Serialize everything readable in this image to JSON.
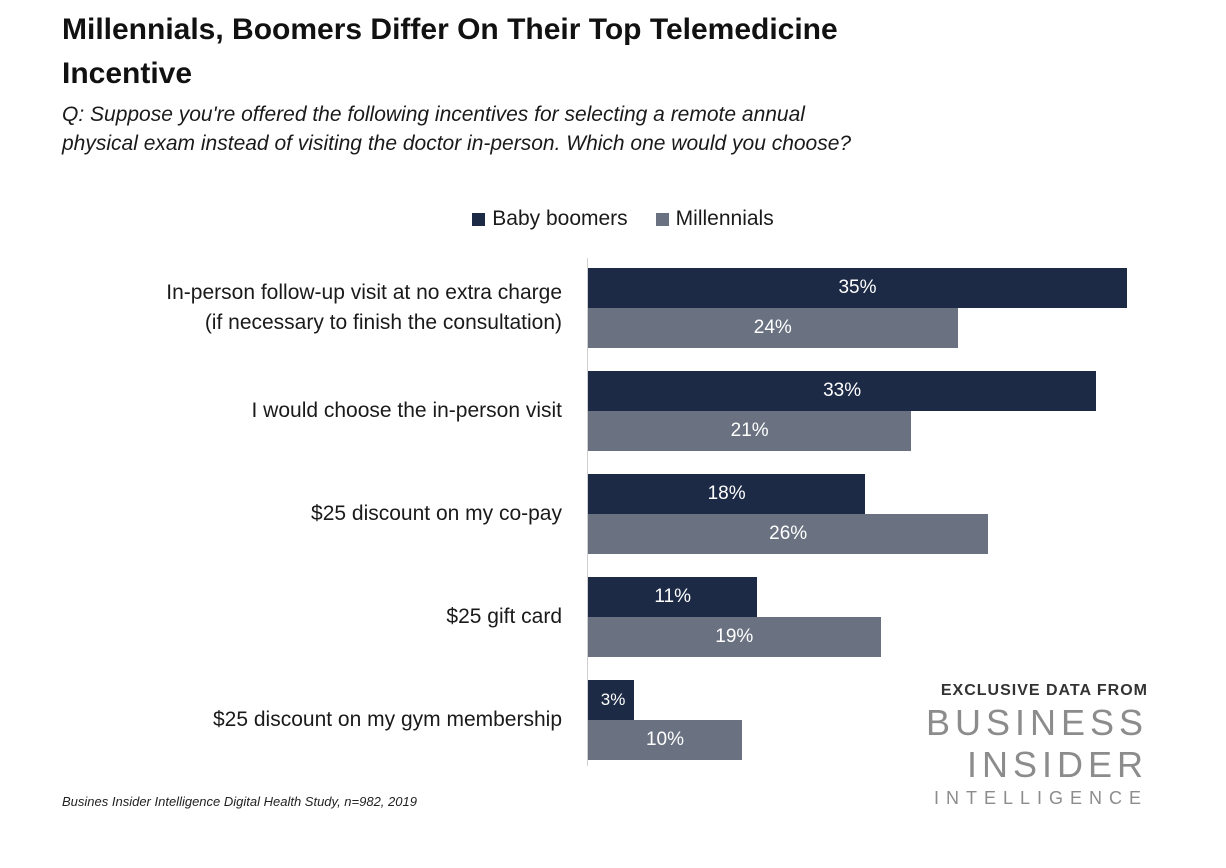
{
  "title": "Millennials, Boomers Differ On Their Top Telemedicine Incentive",
  "subtitle": "Q: Suppose you're offered the following incentives for selecting a remote annual physical exam instead of visiting the doctor in-person. Which one would you choose?",
  "source": "Busines Insider Intelligence Digital Health Study, n=982, 2019",
  "logo": {
    "kicker": "EXCLUSIVE DATA FROM",
    "line1": "BUSINESS",
    "line2": "INSIDER",
    "line3": "INTELLIGENCE"
  },
  "colors": {
    "baby_boomers": "#1c2a45",
    "millennials": "#6a7282"
  },
  "chart_data": {
    "type": "bar",
    "orientation": "horizontal",
    "categories": [
      "In-person follow-up visit at no extra charge (if necessary to finish the consultation)",
      "I would choose the in-person visit",
      "$25 discount on my co-pay",
      "$25 gift card",
      "$25 discount on my gym membership"
    ],
    "category_lines": [
      [
        "In-person follow-up visit at no extra charge",
        "(if necessary to finish the consultation)"
      ],
      [
        "I would choose the in-person visit"
      ],
      [
        "$25 discount on my co-pay"
      ],
      [
        "$25 gift card"
      ],
      [
        "$25 discount on my gym membership"
      ]
    ],
    "series": [
      {
        "name": "Baby boomers",
        "values": [
          35,
          33,
          18,
          11,
          3
        ],
        "labels": [
          "35%",
          "33%",
          "18%",
          "11%",
          "3%"
        ]
      },
      {
        "name": "Millennials",
        "values": [
          24,
          21,
          26,
          19,
          10
        ],
        "labels": [
          "24%",
          "21%",
          "26%",
          "19%",
          "10%"
        ]
      }
    ],
    "xlim": [
      0,
      35
    ],
    "legend_position": "top",
    "grid": false
  }
}
